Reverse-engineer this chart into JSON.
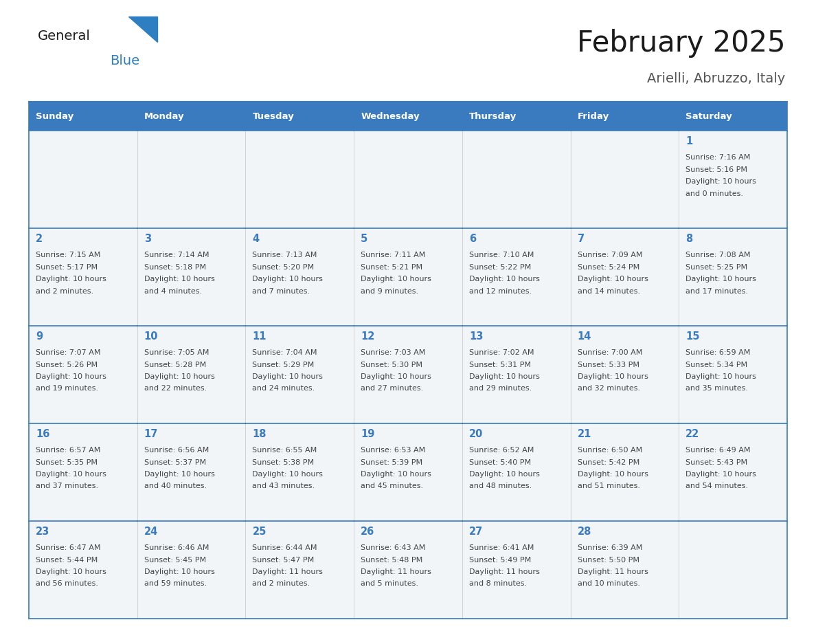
{
  "title": "February 2025",
  "subtitle": "Arielli, Abruzzo, Italy",
  "days_of_week": [
    "Sunday",
    "Monday",
    "Tuesday",
    "Wednesday",
    "Thursday",
    "Friday",
    "Saturday"
  ],
  "header_bg": "#3a7abf",
  "header_text": "#ffffff",
  "cell_bg_odd": "#f2f5f8",
  "cell_bg_even": "#ffffff",
  "border_color": "#3a7abf",
  "text_color": "#444444",
  "day_num_color": "#3a7abf",
  "calendar_data": [
    [
      null,
      null,
      null,
      null,
      null,
      null,
      1
    ],
    [
      2,
      3,
      4,
      5,
      6,
      7,
      8
    ],
    [
      9,
      10,
      11,
      12,
      13,
      14,
      15
    ],
    [
      16,
      17,
      18,
      19,
      20,
      21,
      22
    ],
    [
      23,
      24,
      25,
      26,
      27,
      28,
      null
    ]
  ],
  "sunrise_data": {
    "1": "7:16 AM",
    "2": "7:15 AM",
    "3": "7:14 AM",
    "4": "7:13 AM",
    "5": "7:11 AM",
    "6": "7:10 AM",
    "7": "7:09 AM",
    "8": "7:08 AM",
    "9": "7:07 AM",
    "10": "7:05 AM",
    "11": "7:04 AM",
    "12": "7:03 AM",
    "13": "7:02 AM",
    "14": "7:00 AM",
    "15": "6:59 AM",
    "16": "6:57 AM",
    "17": "6:56 AM",
    "18": "6:55 AM",
    "19": "6:53 AM",
    "20": "6:52 AM",
    "21": "6:50 AM",
    "22": "6:49 AM",
    "23": "6:47 AM",
    "24": "6:46 AM",
    "25": "6:44 AM",
    "26": "6:43 AM",
    "27": "6:41 AM",
    "28": "6:39 AM"
  },
  "sunset_data": {
    "1": "5:16 PM",
    "2": "5:17 PM",
    "3": "5:18 PM",
    "4": "5:20 PM",
    "5": "5:21 PM",
    "6": "5:22 PM",
    "7": "5:24 PM",
    "8": "5:25 PM",
    "9": "5:26 PM",
    "10": "5:28 PM",
    "11": "5:29 PM",
    "12": "5:30 PM",
    "13": "5:31 PM",
    "14": "5:33 PM",
    "15": "5:34 PM",
    "16": "5:35 PM",
    "17": "5:37 PM",
    "18": "5:38 PM",
    "19": "5:39 PM",
    "20": "5:40 PM",
    "21": "5:42 PM",
    "22": "5:43 PM",
    "23": "5:44 PM",
    "24": "5:45 PM",
    "25": "5:47 PM",
    "26": "5:48 PM",
    "27": "5:49 PM",
    "28": "5:50 PM"
  },
  "daylight_hours": {
    "1": 10,
    "2": 10,
    "3": 10,
    "4": 10,
    "5": 10,
    "6": 10,
    "7": 10,
    "8": 10,
    "9": 10,
    "10": 10,
    "11": 10,
    "12": 10,
    "13": 10,
    "14": 10,
    "15": 10,
    "16": 10,
    "17": 10,
    "18": 10,
    "19": 10,
    "20": 10,
    "21": 10,
    "22": 10,
    "23": 10,
    "24": 10,
    "25": 11,
    "26": 11,
    "27": 11,
    "28": 11
  },
  "daylight_minutes": {
    "1": 0,
    "2": 2,
    "3": 4,
    "4": 7,
    "5": 9,
    "6": 12,
    "7": 14,
    "8": 17,
    "9": 19,
    "10": 22,
    "11": 24,
    "12": 27,
    "13": 29,
    "14": 32,
    "15": 35,
    "16": 37,
    "17": 40,
    "18": 43,
    "19": 45,
    "20": 48,
    "21": 51,
    "22": 54,
    "23": 56,
    "24": 59,
    "25": 2,
    "26": 5,
    "27": 8,
    "28": 10
  },
  "fig_width": 11.88,
  "fig_height": 9.18,
  "dpi": 100
}
